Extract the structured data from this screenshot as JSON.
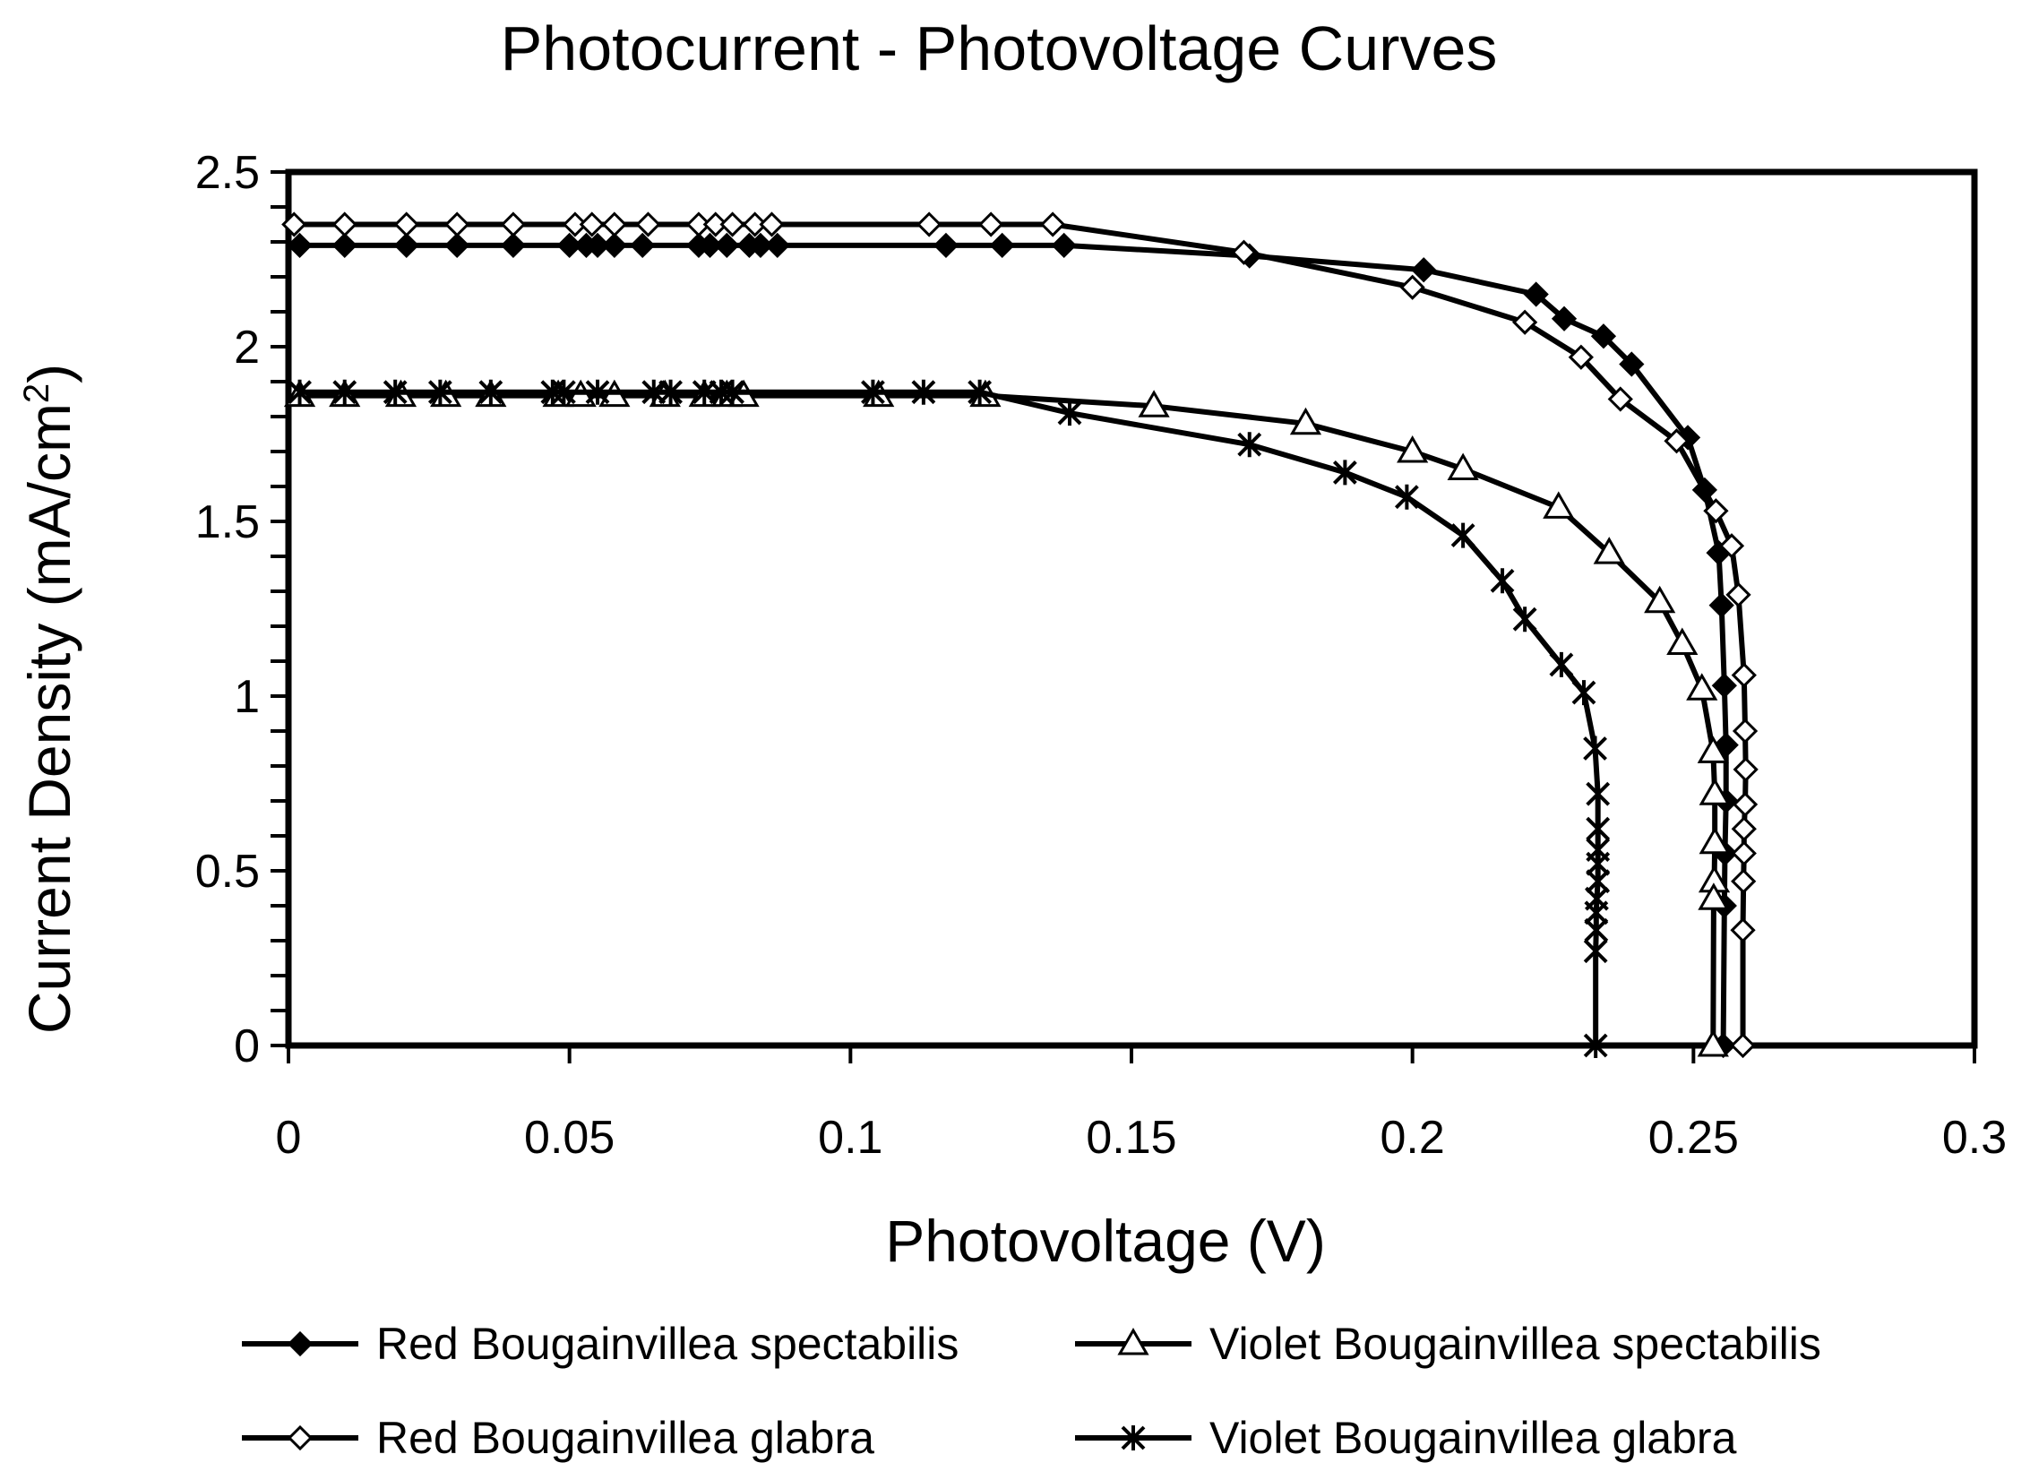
{
  "chart_data": {
    "type": "line",
    "title": "Photocurrent - Photovoltage Curves",
    "xlabel": "Photovoltage (V)",
    "ylabel_main": "Current Density (mA/cm",
    "ylabel_sup": "2",
    "ylabel_close": ")",
    "xlim": [
      0,
      0.3
    ],
    "ylim": [
      0,
      2.5
    ],
    "xticks": [
      0,
      0.05,
      0.1,
      0.15,
      0.2,
      0.25,
      0.3
    ],
    "xtick_labels": [
      "0",
      "0.05",
      "0.1",
      "0.15",
      "0.2",
      "0.25",
      "0.3"
    ],
    "yticks": [
      0,
      0.5,
      1,
      1.5,
      2,
      2.5
    ],
    "ytick_labels": [
      "0",
      "0.5",
      "1",
      "1.5",
      "2",
      "2.5"
    ],
    "grid": false,
    "legend_position": "bottom",
    "series": [
      {
        "name": "Red Bougainvillea spectabilis",
        "marker": "diamond-filled",
        "x": [
          0.002,
          0.01,
          0.021,
          0.03,
          0.04,
          0.05,
          0.053,
          0.055,
          0.058,
          0.063,
          0.073,
          0.075,
          0.078,
          0.082,
          0.084,
          0.087,
          0.117,
          0.127,
          0.138,
          0.171,
          0.202,
          0.222,
          0.227,
          0.234,
          0.239,
          0.249,
          0.252,
          0.2545,
          0.255,
          0.2555,
          0.2558,
          0.2558,
          0.2556,
          0.2555,
          0.2553
        ],
        "y": [
          2.29,
          2.29,
          2.29,
          2.29,
          2.29,
          2.29,
          2.29,
          2.29,
          2.29,
          2.29,
          2.29,
          2.29,
          2.29,
          2.29,
          2.29,
          2.29,
          2.29,
          2.29,
          2.29,
          2.26,
          2.22,
          2.15,
          2.08,
          2.03,
          1.95,
          1.74,
          1.59,
          1.41,
          1.26,
          1.03,
          0.86,
          0.7,
          0.55,
          0.4,
          0.0
        ]
      },
      {
        "name": "Violet Bougainvillea spectabilis",
        "marker": "triangle-open",
        "x": [
          0.002,
          0.01,
          0.02,
          0.028,
          0.036,
          0.048,
          0.052,
          0.058,
          0.067,
          0.074,
          0.078,
          0.081,
          0.105,
          0.124,
          0.154,
          0.181,
          0.2,
          0.209,
          0.226,
          0.235,
          0.244,
          0.248,
          0.2515,
          0.2535,
          0.2538,
          0.2538,
          0.2537,
          0.2536,
          0.2535
        ],
        "y": [
          1.86,
          1.86,
          1.86,
          1.86,
          1.86,
          1.86,
          1.86,
          1.86,
          1.86,
          1.86,
          1.86,
          1.86,
          1.86,
          1.86,
          1.83,
          1.78,
          1.7,
          1.65,
          1.54,
          1.41,
          1.27,
          1.15,
          1.02,
          0.84,
          0.72,
          0.58,
          0.47,
          0.42,
          0.0
        ]
      },
      {
        "name": "Red Bougainvillea glabra",
        "marker": "diamond-open",
        "x": [
          0.001,
          0.01,
          0.021,
          0.03,
          0.04,
          0.051,
          0.054,
          0.058,
          0.064,
          0.073,
          0.076,
          0.079,
          0.083,
          0.086,
          0.114,
          0.125,
          0.136,
          0.17,
          0.2,
          0.22,
          0.23,
          0.237,
          0.247,
          0.254,
          0.2568,
          0.258,
          0.259,
          0.2592,
          0.2593,
          0.2592,
          0.259,
          0.259,
          0.2589,
          0.2588,
          0.2588
        ],
        "y": [
          2.35,
          2.35,
          2.35,
          2.35,
          2.35,
          2.35,
          2.35,
          2.35,
          2.35,
          2.35,
          2.35,
          2.35,
          2.35,
          2.35,
          2.35,
          2.35,
          2.35,
          2.27,
          2.17,
          2.07,
          1.97,
          1.85,
          1.73,
          1.53,
          1.43,
          1.29,
          1.06,
          0.9,
          0.79,
          0.69,
          0.62,
          0.55,
          0.47,
          0.33,
          0.0
        ]
      },
      {
        "name": "Violet Bougainvillea glabra",
        "marker": "asterisk",
        "x": [
          0.002,
          0.01,
          0.019,
          0.027,
          0.036,
          0.047,
          0.049,
          0.055,
          0.065,
          0.068,
          0.074,
          0.077,
          0.079,
          0.104,
          0.113,
          0.123,
          0.139,
          0.171,
          0.188,
          0.199,
          0.209,
          0.216,
          0.22,
          0.2265,
          0.2305,
          0.2325,
          0.233,
          0.233,
          0.233,
          0.233,
          0.233,
          0.2328,
          0.2327,
          0.2327,
          0.2326,
          0.2326
        ],
        "y": [
          1.87,
          1.87,
          1.87,
          1.87,
          1.87,
          1.87,
          1.87,
          1.87,
          1.87,
          1.87,
          1.87,
          1.87,
          1.87,
          1.87,
          1.87,
          1.87,
          1.81,
          1.72,
          1.64,
          1.57,
          1.46,
          1.33,
          1.22,
          1.09,
          1.01,
          0.85,
          0.72,
          0.62,
          0.56,
          0.52,
          0.47,
          0.42,
          0.38,
          0.33,
          0.27,
          0.0
        ]
      }
    ]
  }
}
